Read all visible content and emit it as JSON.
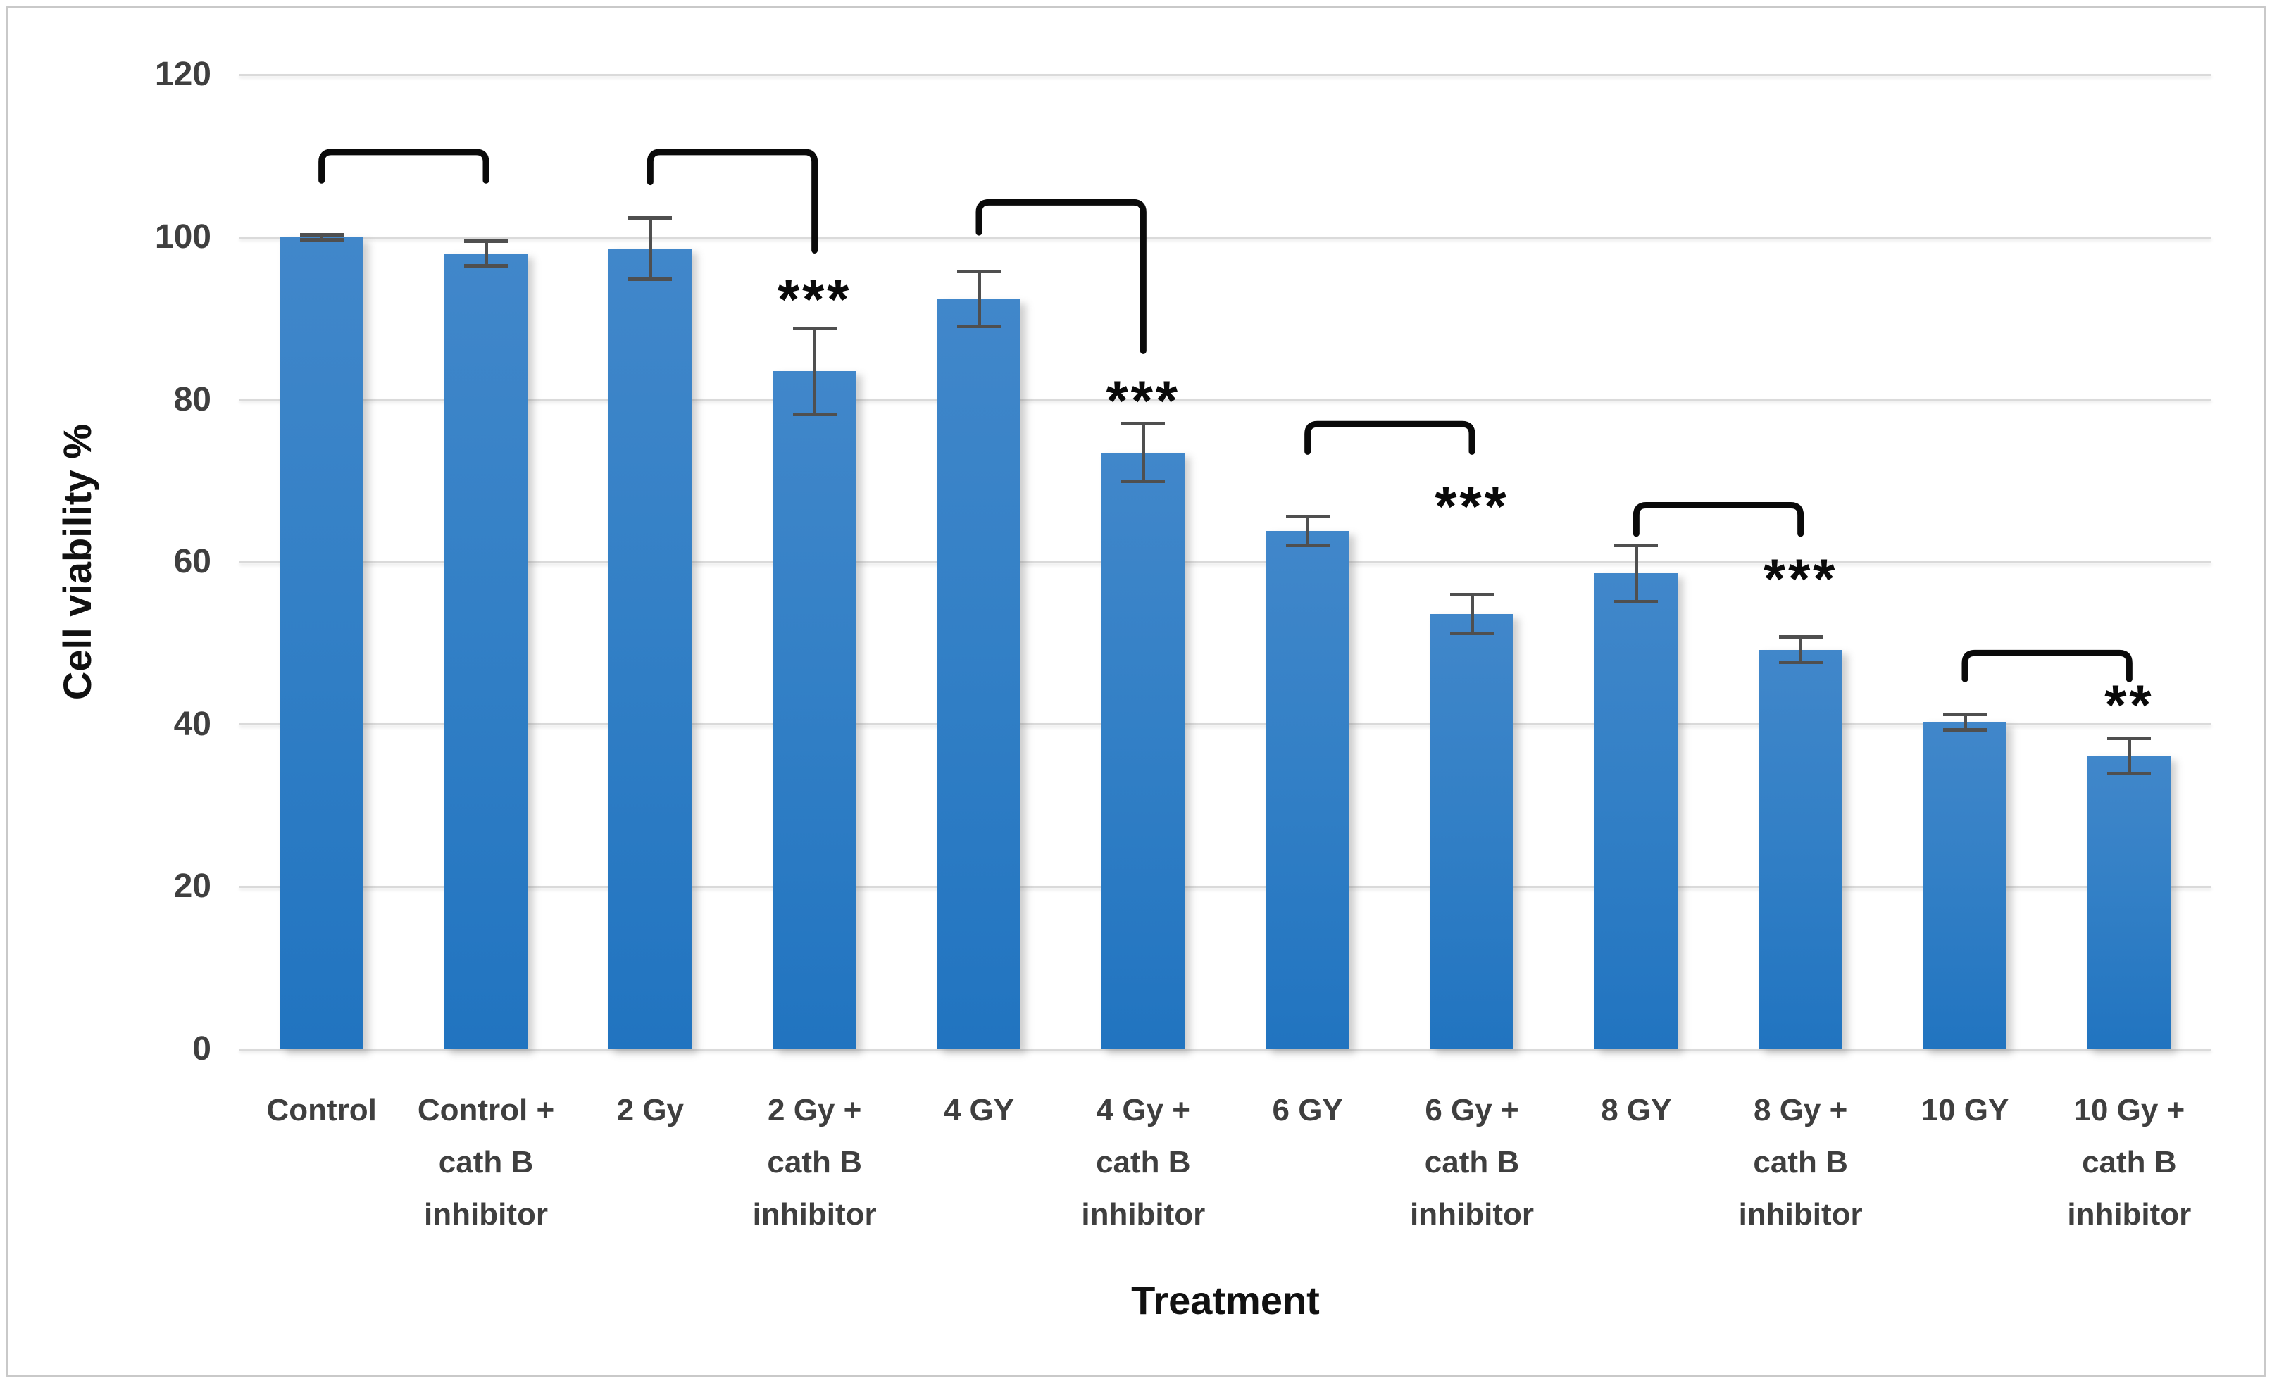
{
  "chart_data": {
    "type": "bar",
    "title": "",
    "xlabel": "Treatment",
    "ylabel": "Cell viability %",
    "ylim": [
      0,
      120
    ],
    "yticks": [
      0,
      20,
      40,
      60,
      80,
      100,
      120
    ],
    "grid": true,
    "legend": false,
    "bar_color": "#3380c6",
    "error_bar_color": "#4f4f4f",
    "gridline_color": "#dadada",
    "annotation_color": "#0a0a0a",
    "categories": [
      [
        "Control"
      ],
      [
        "Control +",
        "cath B",
        "inhibitor"
      ],
      [
        "2 Gy"
      ],
      [
        "2 Gy +",
        "cath B",
        "inhibitor"
      ],
      [
        "4 GY"
      ],
      [
        "4 Gy +",
        "cath B",
        "inhibitor"
      ],
      [
        "6 GY"
      ],
      [
        "6 Gy +",
        "cath B",
        "inhibitor"
      ],
      [
        "8 GY"
      ],
      [
        "8 Gy +",
        "cath B",
        "inhibitor"
      ],
      [
        "10 GY"
      ],
      [
        "10 Gy +",
        "cath B",
        "inhibitor"
      ]
    ],
    "values": [
      100,
      98,
      98.6,
      83.5,
      92.4,
      73.5,
      63.8,
      53.6,
      58.6,
      49.2,
      40.3,
      36.1
    ],
    "errors": [
      0.5,
      1.7,
      4.0,
      5.5,
      3.6,
      3.8,
      2.0,
      2.6,
      3.7,
      1.8,
      1.2,
      2.4
    ],
    "significance_brackets": [
      {
        "left_bar": 0,
        "right_bar": 1,
        "top": 110.5,
        "left_end": 107.0,
        "right_end": 107.0,
        "stars": "",
        "stars_y": null
      },
      {
        "left_bar": 2,
        "right_bar": 3,
        "top": 110.5,
        "left_end": 106.8,
        "right_end": 98.4,
        "stars": "***",
        "stars_y": 93.0
      },
      {
        "left_bar": 4,
        "right_bar": 5,
        "top": 104.3,
        "left_end": 100.6,
        "right_end": 86.0,
        "stars": "***",
        "stars_y": 80.5
      },
      {
        "left_bar": 6,
        "right_bar": 7,
        "top": 77.0,
        "left_end": 73.6,
        "right_end": 73.6,
        "stars": "***",
        "stars_y": 67.5
      },
      {
        "left_bar": 8,
        "right_bar": 9,
        "top": 67.0,
        "left_end": 63.5,
        "right_end": 63.5,
        "stars": "***",
        "stars_y": 58.5
      },
      {
        "left_bar": 10,
        "right_bar": 11,
        "top": 48.8,
        "left_end": 45.6,
        "right_end": 45.6,
        "stars": "**",
        "stars_y": 43.0
      }
    ]
  }
}
